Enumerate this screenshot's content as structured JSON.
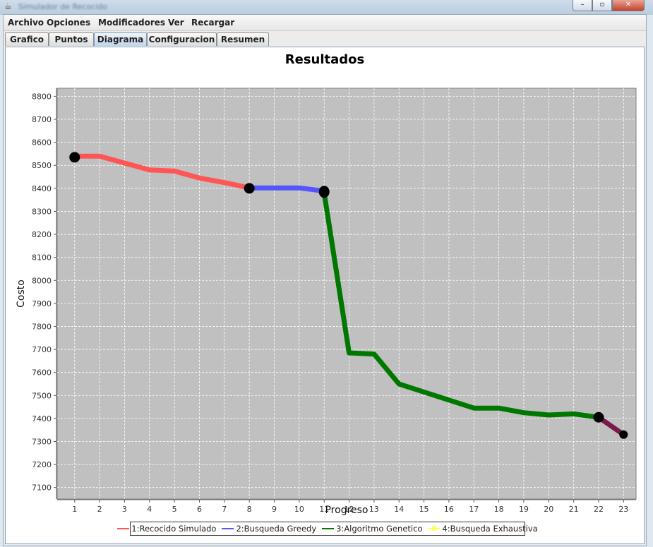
{
  "window": {
    "title": "Simulador de Recocido"
  },
  "window_buttons": {
    "minimize": "–",
    "maximize": "▫",
    "close": "✕"
  },
  "menu": [
    "Archivo",
    "Opciones",
    "Modificadores",
    "Ver",
    "Recargar"
  ],
  "tabs": [
    {
      "label": "Grafico",
      "active": false
    },
    {
      "label": "Puntos",
      "active": false
    },
    {
      "label": "Diagrama",
      "active": true
    },
    {
      "label": "Configuracion",
      "active": false
    },
    {
      "label": "Resumen",
      "active": false
    }
  ],
  "chart_data": {
    "type": "line",
    "title": "Resultados",
    "xlabel": "Progreso",
    "ylabel": "Costo",
    "xlim": [
      0.3,
      23.5
    ],
    "ylim": [
      7050,
      8835
    ],
    "xticks": [
      1,
      2,
      3,
      4,
      5,
      6,
      7,
      8,
      9,
      10,
      11,
      12,
      13,
      14,
      15,
      16,
      17,
      18,
      19,
      20,
      21,
      22,
      23
    ],
    "yticks": [
      7100,
      7200,
      7300,
      7400,
      7500,
      7600,
      7700,
      7800,
      7900,
      8000,
      8100,
      8200,
      8300,
      8400,
      8500,
      8600,
      8700,
      8800
    ],
    "grid": true,
    "plot_background": "#c0c0c0",
    "legend_position": "bottom",
    "series": [
      {
        "name": "1:Recocido Simulado",
        "color": "#ff5555",
        "points": [
          [
            1,
            8540
          ],
          [
            2,
            8540
          ],
          [
            3,
            8510
          ],
          [
            4,
            8480
          ],
          [
            5,
            8475
          ],
          [
            6,
            8445
          ],
          [
            7,
            8425
          ],
          [
            8,
            8402
          ]
        ]
      },
      {
        "name": "2:Busqueda Greedy",
        "color": "#5555ff",
        "points": [
          [
            8,
            8402
          ],
          [
            9,
            8402
          ],
          [
            10,
            8402
          ],
          [
            11,
            8388
          ]
        ]
      },
      {
        "name": "3:Algoritmo Genetico",
        "color": "#007800",
        "points": [
          [
            11,
            8380
          ],
          [
            12,
            7685
          ],
          [
            13,
            7680
          ],
          [
            14,
            7550
          ],
          [
            15,
            7515
          ],
          [
            16,
            7480
          ],
          [
            17,
            7445
          ],
          [
            18,
            7445
          ],
          [
            19,
            7425
          ],
          [
            20,
            7415
          ],
          [
            21,
            7420
          ],
          [
            22,
            7405
          ]
        ]
      },
      {
        "name": "4:Busqueda Exhaustiva",
        "color": "#ffff55",
        "points": []
      }
    ],
    "overlap_segment": {
      "color": "#7a1a48",
      "points": [
        [
          22,
          7405
        ],
        [
          23,
          7330
        ]
      ]
    },
    "markers": [
      [
        1,
        8535
      ],
      [
        8,
        8400
      ],
      [
        11,
        8385
      ],
      [
        22,
        7405
      ],
      [
        23,
        7330
      ]
    ]
  }
}
